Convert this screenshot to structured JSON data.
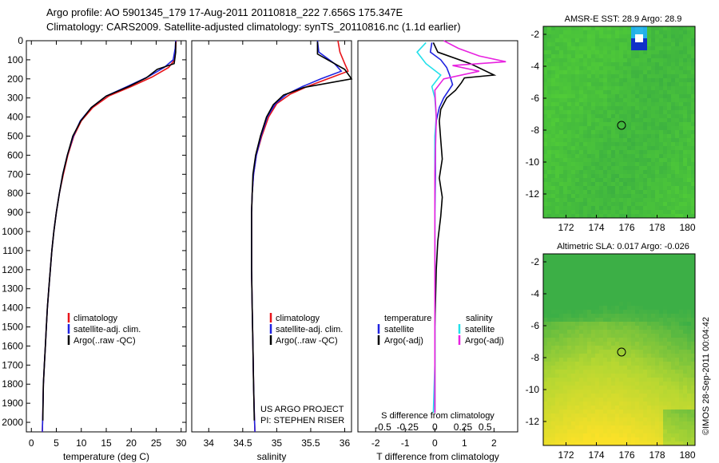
{
  "header": {
    "line1": "Argo profile: AO 5901345_179 17-Aug-2011 20110818_222 7.656S 175.347E",
    "line2": "Climatology: CARS2009. Satellite-adjusted climatology: synTS_20110816.nc (1.1d earlier)"
  },
  "project": {
    "line1": "US ARGO PROJECT",
    "line2": "PI: STEPHEN RISER"
  },
  "stamp": "©IMOS 28-Sep-2011 00:04:42",
  "colors": {
    "climatology": "#e8141a",
    "satellite": "#1f22e0",
    "argo": "#000000",
    "salinity_satellite": "#22e0ea",
    "salinity_argo": "#e822e0"
  },
  "chart_data": [
    {
      "type": "line",
      "panel": "temperature",
      "xlabel": "temperature (deg C)",
      "ylabel": "",
      "xlim": [
        -1,
        31
      ],
      "ylim": [
        2050,
        0
      ],
      "xticks": [
        0,
        5,
        10,
        15,
        20,
        25,
        30
      ],
      "yticks": [
        0,
        100,
        200,
        300,
        400,
        500,
        600,
        700,
        800,
        900,
        1000,
        1100,
        1200,
        1300,
        1400,
        1500,
        1600,
        1700,
        1800,
        1900,
        2000
      ],
      "legend": [
        "climatology",
        "satellite-adj. clim.",
        "Argo(..raw -QC)"
      ],
      "series": [
        {
          "name": "climatology",
          "color": "#e8141a",
          "x": [
            29.0,
            28.9,
            28.7,
            27.5,
            24.2,
            20.0,
            15.5,
            12.3,
            10.0,
            8.5,
            7.3,
            6.4,
            5.6,
            5.0,
            4.5,
            4.1,
            3.8,
            3.5,
            3.2,
            3.0,
            2.8,
            2.6,
            2.4,
            2.3,
            2.2
          ],
          "y": [
            0,
            40,
            100,
            140,
            190,
            240,
            290,
            350,
            420,
            500,
            600,
            700,
            800,
            900,
            1000,
            1100,
            1200,
            1300,
            1400,
            1500,
            1600,
            1700,
            1800,
            1950,
            2050
          ]
        },
        {
          "name": "satellite-adj. clim.",
          "color": "#1f22e0",
          "x": [
            28.9,
            28.8,
            28.4,
            26.6,
            23.3,
            19.2,
            15.0,
            12.0,
            9.8,
            8.4,
            7.2,
            6.3,
            5.6,
            5.0,
            4.5,
            4.1,
            3.8,
            3.5,
            3.2,
            3.0,
            2.8,
            2.6,
            2.4,
            2.3,
            2.2
          ],
          "y": [
            0,
            40,
            100,
            140,
            190,
            240,
            290,
            350,
            420,
            500,
            600,
            700,
            800,
            900,
            1000,
            1100,
            1200,
            1300,
            1400,
            1500,
            1600,
            1700,
            1800,
            1950,
            2050
          ]
        },
        {
          "name": "Argo(..raw -QC)",
          "color": "#000000",
          "x": [
            28.9,
            28.9,
            28.6,
            25.2,
            23.0,
            19.5,
            15.0,
            12.0,
            9.9,
            8.3,
            7.2,
            6.3,
            5.6,
            5.0,
            4.5,
            4.1,
            3.8,
            3.5,
            3.2,
            3.0,
            2.8,
            2.6,
            2.4,
            2.3
          ],
          "y": [
            5,
            60,
            120,
            150,
            195,
            240,
            290,
            350,
            420,
            500,
            600,
            700,
            800,
            900,
            1000,
            1100,
            1200,
            1300,
            1400,
            1500,
            1600,
            1700,
            1800,
            1990
          ]
        }
      ]
    },
    {
      "type": "line",
      "panel": "salinity",
      "xlabel": "salinity",
      "ylabel": "",
      "xlim": [
        33.75,
        36.1
      ],
      "ylim": [
        2050,
        0
      ],
      "xticks": [
        34,
        34.5,
        35,
        35.5,
        36
      ],
      "legend": [
        "climatology",
        "satellite-adj. clim.",
        "Argo(..raw -QC)"
      ],
      "series": [
        {
          "name": "climatology",
          "color": "#e8141a",
          "x": [
            35.9,
            35.93,
            36.0,
            36.05,
            35.75,
            35.45,
            35.2,
            35.0,
            34.88,
            34.78,
            34.7,
            34.66,
            34.64,
            34.63,
            34.63,
            34.63,
            34.64,
            34.65,
            34.66,
            34.67,
            34.68
          ],
          "y": [
            0,
            60,
            120,
            160,
            200,
            240,
            280,
            330,
            400,
            500,
            600,
            700,
            800,
            900,
            1000,
            1200,
            1400,
            1600,
            1800,
            1950,
            2050
          ]
        },
        {
          "name": "satellite-adj. clim.",
          "color": "#1f22e0",
          "x": [
            35.6,
            35.62,
            35.85,
            35.95,
            35.65,
            35.38,
            35.15,
            34.98,
            34.86,
            34.77,
            34.7,
            34.66,
            34.64,
            34.63,
            34.63,
            34.63,
            34.64,
            34.65,
            34.66,
            34.67,
            34.68
          ],
          "y": [
            0,
            60,
            120,
            160,
            200,
            240,
            280,
            330,
            400,
            500,
            600,
            700,
            800,
            900,
            1000,
            1200,
            1400,
            1600,
            1800,
            1950,
            2050
          ]
        },
        {
          "name": "Argo(..raw -QC)",
          "color": "#000000",
          "x": [
            35.6,
            35.6,
            35.8,
            36.0,
            36.1,
            35.4,
            35.1,
            34.95,
            34.85,
            34.76,
            34.69,
            34.65,
            34.64,
            34.63,
            34.63,
            34.63,
            34.64,
            34.65,
            34.66,
            34.67
          ],
          "y": [
            5,
            70,
            110,
            150,
            200,
            245,
            285,
            335,
            400,
            500,
            600,
            700,
            800,
            900,
            1000,
            1200,
            1400,
            1600,
            1800,
            1990
          ]
        }
      ]
    },
    {
      "type": "line",
      "panel": "difference",
      "xlabel": "T difference from climatology",
      "xlabel_top": "S difference from climatology",
      "xlim": [
        -2.6,
        2.8
      ],
      "xticks_T": [
        -2,
        -1,
        0,
        1,
        2
      ],
      "xticks_S_labels": [
        "-0.5",
        "-0.25",
        "0",
        "0.25",
        "0.5"
      ],
      "xticks_S_positions_T_units": [
        -1.75,
        -0.92,
        0,
        0.95,
        1.7
      ],
      "legend": {
        "temperature_heading": "temperature",
        "salinity_heading": "salinity",
        "t_satellite": "satellite",
        "t_argo": "Argo(-adj)",
        "s_satellite": "satellite",
        "s_argo": "Argo(-adj)"
      },
      "series": [
        {
          "name": "T satellite",
          "color": "#1f22e0",
          "x": [
            -0.1,
            -0.15,
            0.2,
            0.4,
            0.5,
            0.6,
            0.3,
            0.15,
            0.05,
            0.02,
            0.02,
            0.0,
            0.0,
            0.0,
            0.0,
            0.0
          ],
          "y": [
            10,
            60,
            100,
            140,
            180,
            230,
            300,
            350,
            420,
            500,
            700,
            900,
            1200,
            1500,
            1800,
            1950
          ]
        },
        {
          "name": "T Argo(-adj)",
          "color": "#000000",
          "x": [
            -0.05,
            0.1,
            1.2,
            2.0,
            1.0,
            0.9,
            0.7,
            0.4,
            0.2,
            0.15,
            0.2,
            0.25,
            0.15,
            0.25,
            0.2,
            0.1,
            0.05,
            0.0,
            0.0,
            0.0
          ],
          "y": [
            10,
            60,
            120,
            180,
            195,
            220,
            260,
            300,
            360,
            420,
            520,
            620,
            720,
            820,
            920,
            1050,
            1200,
            1500,
            1800,
            1950
          ]
        },
        {
          "name": "S satellite",
          "color": "#22e0ea",
          "x": [
            -0.3,
            -0.6,
            -0.3,
            0.2,
            -0.1,
            0.0,
            0.05,
            0.0,
            0.0,
            0.0,
            0.0,
            0.0,
            -0.05
          ],
          "y": [
            10,
            60,
            120,
            180,
            240,
            300,
            400,
            500,
            800,
            1100,
            1400,
            1700,
            1950
          ]
        },
        {
          "name": "S Argo(-adj)",
          "color": "#e822e0",
          "x": [
            0.3,
            0.8,
            1.5,
            2.4,
            0.6,
            1.5,
            0.3,
            0.0,
            0.05,
            0.0,
            0.0,
            0.0,
            0.0,
            0.0
          ],
          "y": [
            0,
            40,
            80,
            110,
            130,
            160,
            200,
            260,
            400,
            700,
            1000,
            1300,
            1600,
            1950
          ]
        }
      ]
    },
    {
      "type": "heatmap",
      "panel": "sst_map",
      "title": "AMSR-E SST: 28.9 Argo: 28.9",
      "xlim": [
        170.5,
        180.5
      ],
      "ylim": [
        -13.5,
        -1.5
      ],
      "xticks": [
        172,
        174,
        176,
        178,
        180
      ],
      "yticks": [
        -2,
        -4,
        -6,
        -8,
        -10,
        -12
      ],
      "profile_marker": [
        175.347,
        -7.656
      ]
    },
    {
      "type": "heatmap",
      "panel": "sla_map",
      "title": "Altimetric SLA: 0.017 Argo: -0.026",
      "xlim": [
        170.5,
        180.5
      ],
      "ylim": [
        -13.5,
        -1.5
      ],
      "xticks": [
        172,
        174,
        176,
        178,
        180
      ],
      "yticks": [
        -2,
        -4,
        -6,
        -8,
        -10,
        -12
      ],
      "profile_marker": [
        175.347,
        -7.656
      ]
    }
  ]
}
